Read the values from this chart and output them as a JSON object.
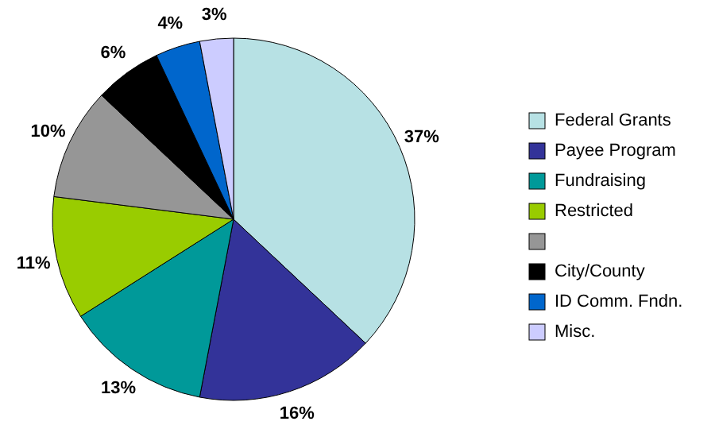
{
  "chart_data": {
    "type": "pie",
    "categories": [
      "Federal Grants",
      "Payee Program",
      "Fundraising",
      "Restricted",
      null,
      "City/County",
      "ID Comm. Fndn.",
      "Misc."
    ],
    "values": [
      37,
      16,
      13,
      11,
      10,
      6,
      4,
      3
    ],
    "value_labels": [
      "37%",
      "16%",
      "13%",
      "11%",
      "10%",
      "6%",
      "4%",
      "3%"
    ],
    "colors": [
      "#b7e1e4",
      "#333399",
      "#009999",
      "#99cc00",
      "#969696",
      "#000000",
      "#0066cc",
      "#ccccff"
    ],
    "legend": "right"
  }
}
